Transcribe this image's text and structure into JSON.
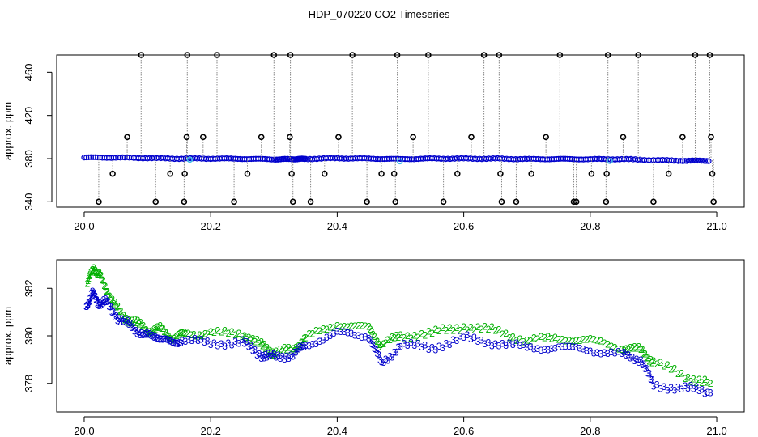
{
  "chart_data": [
    {
      "type": "scatter",
      "title": "HDP_070220  CO2 Timeseries",
      "xlabel": "",
      "ylabel": "approx. ppm",
      "xlim": [
        20.0,
        21.0
      ],
      "ylim": [
        335,
        476
      ],
      "xticks": [
        "20.0",
        "20.2",
        "20.4",
        "20.6",
        "20.8",
        "21.0"
      ],
      "yticks": [
        "340",
        "380",
        "420",
        "460"
      ],
      "series": [
        {
          "marker": "circle",
          "color": "#0000cc",
          "x": [
            20.0,
            20.05,
            20.1,
            20.15,
            20.2,
            20.25,
            20.3,
            20.33,
            20.35,
            20.4,
            20.45,
            20.5,
            20.55,
            20.6,
            20.65,
            20.7,
            20.75,
            20.8,
            20.85,
            20.9,
            20.95,
            20.99
          ],
          "y": [
            381,
            381,
            380.5,
            380,
            380,
            379.8,
            379.3,
            379.5,
            379.7,
            380.3,
            380,
            379.5,
            380,
            380,
            379.9,
            379.5,
            379.6,
            379.4,
            379.5,
            378.5,
            378,
            378
          ]
        },
        {
          "marker": "circle",
          "color": "#000000",
          "x": [
            20.023,
            20.045,
            20.068,
            20.09,
            20.113,
            20.136,
            20.158,
            20.159,
            20.162,
            20.163,
            20.188,
            20.21,
            20.237,
            20.258,
            20.28,
            20.3,
            20.325,
            20.326,
            20.328,
            20.33,
            20.358,
            20.38,
            20.402,
            20.424,
            20.447,
            20.47,
            20.49,
            20.492,
            20.495,
            20.52,
            20.544,
            20.568,
            20.59,
            20.612,
            20.632,
            20.656,
            20.658,
            20.66,
            20.683,
            20.707,
            20.73,
            20.752,
            20.774,
            20.778,
            20.802,
            20.825,
            20.826,
            20.828,
            20.852,
            20.876,
            20.9,
            20.924,
            20.946,
            20.966,
            20.989,
            20.991,
            20.993,
            20.995
          ],
          "y": [
            340,
            366,
            400,
            476,
            340,
            366,
            340,
            366,
            400,
            476,
            400,
            476,
            340,
            366,
            400,
            476,
            400,
            476,
            366,
            340,
            340,
            366,
            400,
            476,
            340,
            366,
            366,
            340,
            476,
            400,
            476,
            340,
            366,
            400,
            476,
            476,
            366,
            340,
            340,
            366,
            400,
            476,
            340,
            340,
            366,
            340,
            366,
            476,
            400,
            476,
            340,
            366,
            400,
            476,
            476,
            400,
            366,
            340
          ]
        },
        {
          "marker": "circle",
          "color": "#3fb8e8",
          "x": [
            20.167,
            20.499,
            20.831
          ],
          "y": [
            379.0,
            377.5,
            377.8
          ]
        }
      ]
    },
    {
      "type": "scatter",
      "title": "",
      "xlabel": "",
      "ylabel": "approx. ppm",
      "xlim": [
        20.0,
        21.0
      ],
      "ylim": [
        376.8,
        383.2
      ],
      "xticks": [
        "20.0",
        "20.2",
        "20.4",
        "20.6",
        "20.8",
        "21.0"
      ],
      "yticks": [
        "378",
        "380",
        "382"
      ],
      "series": [
        {
          "marker": "2",
          "color": "#00b000",
          "x": [
            20.005,
            20.015,
            20.025,
            20.04,
            20.06,
            20.08,
            20.1,
            20.12,
            20.14,
            20.16,
            20.2,
            20.25,
            20.28,
            20.3,
            20.33,
            20.35,
            20.4,
            20.45,
            20.47,
            20.5,
            20.55,
            20.6,
            20.65,
            20.7,
            20.75,
            20.8,
            20.85,
            20.88,
            20.9,
            20.95,
            20.99
          ],
          "y": [
            382.2,
            382.9,
            382.5,
            381.7,
            380.8,
            380.6,
            380.2,
            380.3,
            379.9,
            380.1,
            380.1,
            380.1,
            379.6,
            379.3,
            379.4,
            379.9,
            380.5,
            380.3,
            379.6,
            380.0,
            380.1,
            380.4,
            380.2,
            379.8,
            379.9,
            379.8,
            379.5,
            379.4,
            378.9,
            378.3,
            378.0
          ]
        },
        {
          "marker": "3",
          "color": "#0000cc",
          "x": [
            20.003,
            20.012,
            20.022,
            20.035,
            20.055,
            20.075,
            20.095,
            20.115,
            20.135,
            20.155,
            20.2,
            20.25,
            20.28,
            20.3,
            20.33,
            20.35,
            20.4,
            20.45,
            20.47,
            20.5,
            20.55,
            20.6,
            20.65,
            20.7,
            20.75,
            20.8,
            20.85,
            20.88,
            20.9,
            20.95,
            20.99
          ],
          "y": [
            381.2,
            381.8,
            381.4,
            381.4,
            380.7,
            380.4,
            380.0,
            380.0,
            379.7,
            379.8,
            379.7,
            379.7,
            379.2,
            379.1,
            379.2,
            379.6,
            380.1,
            380.0,
            378.8,
            379.6,
            379.5,
            379.9,
            379.7,
            379.5,
            379.5,
            379.4,
            379.2,
            379.0,
            377.9,
            377.8,
            377.6
          ]
        }
      ]
    }
  ]
}
